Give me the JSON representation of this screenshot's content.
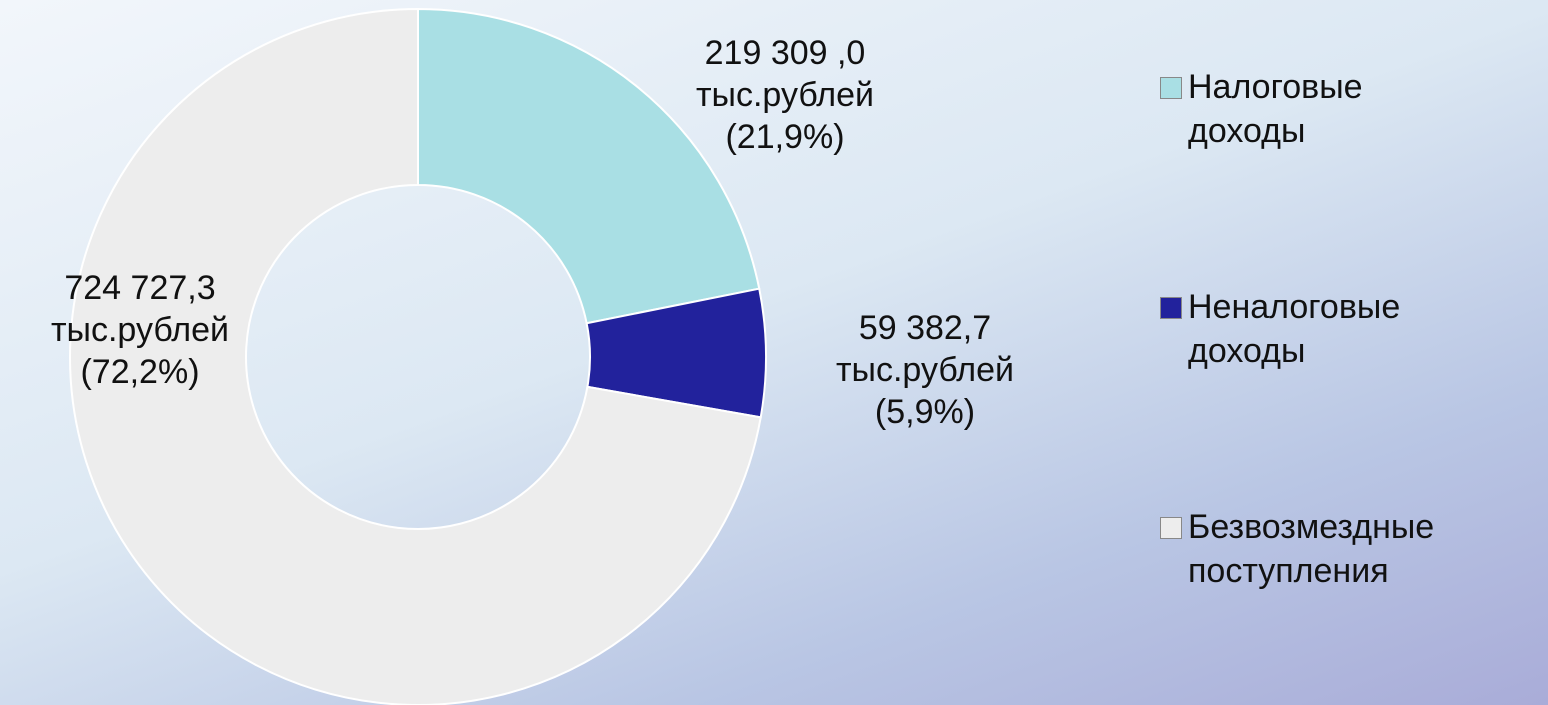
{
  "chart_data": {
    "type": "donut",
    "categories": [
      "Налоговые доходы",
      "Неналоговые доходы",
      "Безвозмездные поступления"
    ],
    "values": [
      219309.0,
      59382.7,
      724727.3
    ],
    "value_labels": [
      "219 309 ,0\nтыс.рублей\n(21,9%)",
      "59 382,7\nтыс.рублей\n(5,9%)",
      "724 727,3\nтыс.рублей\n(72,2%)"
    ],
    "colors": [
      "#a9dfe4",
      "#22229c",
      "#ededed"
    ],
    "legend": "right"
  }
}
